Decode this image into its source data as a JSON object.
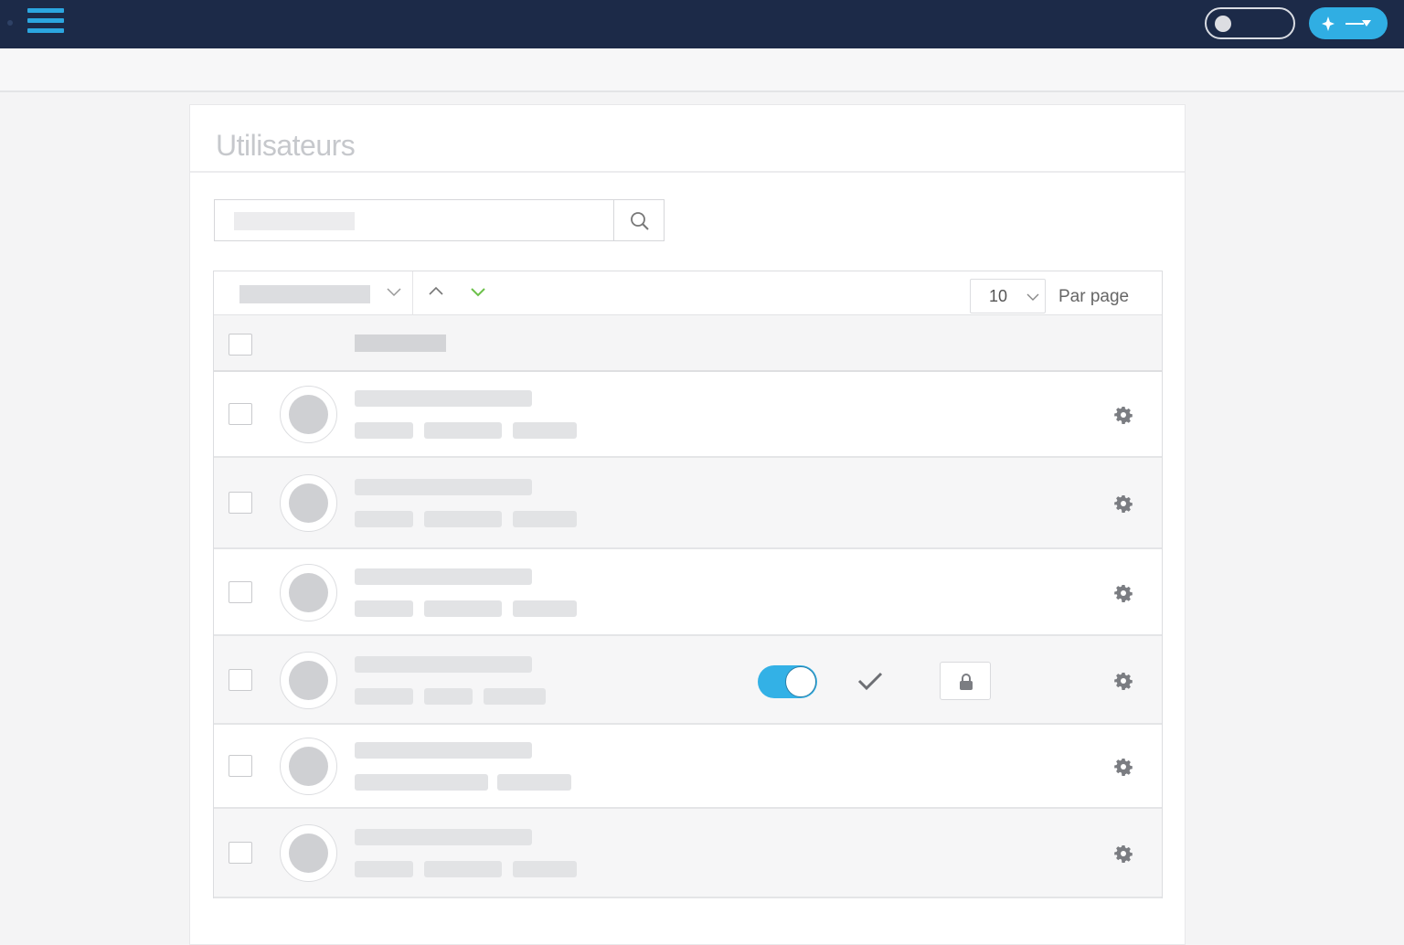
{
  "topbar": {
    "menu_icon": "hamburger-icon",
    "toggle_on": false,
    "add_icon": "sparkle-arrow-icon",
    "accent": "#30aee3",
    "bg": "#1c2a48"
  },
  "page": {
    "title": "Utilisateurs"
  },
  "search": {
    "placeholder": "",
    "icon": "search-icon"
  },
  "toolbar": {
    "per_page_value": "10",
    "per_page_label": "Par page"
  },
  "rows": [
    {
      "avatar": true,
      "toggle": null
    },
    {
      "avatar": true,
      "toggle": null
    },
    {
      "avatar": true,
      "toggle": null
    },
    {
      "avatar": true,
      "toggle": true,
      "verified": true,
      "locked": true
    },
    {
      "avatar": true,
      "toggle": null
    },
    {
      "avatar": true,
      "toggle": null
    }
  ]
}
